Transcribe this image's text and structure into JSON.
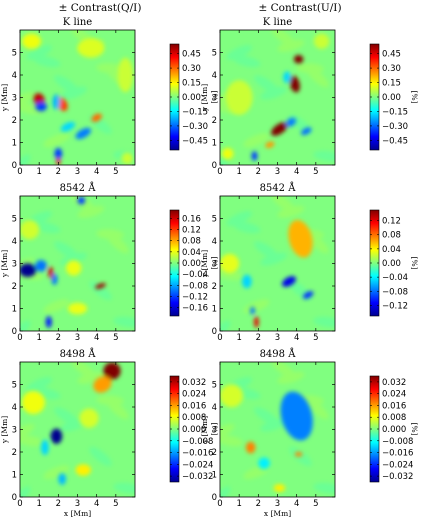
{
  "figure": {
    "column_titles": [
      "± Contrast(Q/I)",
      "± Contrast(U/I)"
    ],
    "colorbar_unit": "[%]",
    "x_axis_label": "x [Mm]",
    "y_axis_label": "y [Mm]",
    "colormap": [
      "#00008f",
      "#0000ff",
      "#0080ff",
      "#00ffff",
      "#80ff80",
      "#ffff00",
      "#ff8000",
      "#ff0000",
      "#800000"
    ],
    "background_color": "#5fdc9c"
  },
  "chart_data": [
    {
      "type": "heatmap",
      "title": "K line",
      "row": 0,
      "col": 0,
      "xlim": [
        0,
        6
      ],
      "ylim": [
        0,
        6
      ],
      "x_ticks": [
        0,
        1,
        2,
        3,
        4,
        5
      ],
      "y_ticks": [
        0,
        1,
        2,
        3,
        4,
        5
      ],
      "clim": [
        -0.55,
        0.55
      ],
      "colorbar_ticks": [
        0.45,
        0.3,
        0.15,
        0.0,
        -0.15,
        -0.3,
        -0.45
      ],
      "colorbar_tick_labels": [
        "0.45",
        "0.30",
        "0.15",
        "0.00",
        "−0.15",
        "−0.30",
        "−0.45"
      ],
      "features": [
        {
          "x": 1.0,
          "y": 2.9,
          "value": 0.48,
          "sx": 0.28,
          "sy": 0.35,
          "rot": -20
        },
        {
          "x": 1.1,
          "y": 2.6,
          "value": -0.35,
          "sx": 0.3,
          "sy": 0.25,
          "rot": 0
        },
        {
          "x": 2.2,
          "y": 2.7,
          "value": 0.35,
          "sx": 0.25,
          "sy": 0.38,
          "rot": -30
        },
        {
          "x": 1.9,
          "y": 2.8,
          "value": -0.22,
          "sx": 0.2,
          "sy": 0.4,
          "rot": 0
        },
        {
          "x": 2.5,
          "y": 1.7,
          "value": -0.18,
          "sx": 0.4,
          "sy": 0.2,
          "rot": -25
        },
        {
          "x": 3.3,
          "y": 1.4,
          "value": -0.28,
          "sx": 0.45,
          "sy": 0.22,
          "rot": -30
        },
        {
          "x": 4.0,
          "y": 2.1,
          "value": 0.3,
          "sx": 0.3,
          "sy": 0.18,
          "rot": -30
        },
        {
          "x": 2.0,
          "y": 0.5,
          "value": -0.35,
          "sx": 0.2,
          "sy": 0.3,
          "rot": 0
        },
        {
          "x": 2.0,
          "y": 0.15,
          "value": 0.42,
          "sx": 0.12,
          "sy": 0.15,
          "rot": 0
        },
        {
          "x": 0.6,
          "y": 5.5,
          "value": 0.12,
          "sx": 0.5,
          "sy": 0.4,
          "rot": 0
        },
        {
          "x": 3.7,
          "y": 5.2,
          "value": 0.1,
          "sx": 0.7,
          "sy": 0.5,
          "rot": 0
        },
        {
          "x": 5.5,
          "y": 4.0,
          "value": 0.08,
          "sx": 0.4,
          "sy": 0.9,
          "rot": 0
        },
        {
          "x": 5.6,
          "y": 0.3,
          "value": 0.08,
          "sx": 0.3,
          "sy": 0.3,
          "rot": 0
        }
      ]
    },
    {
      "type": "heatmap",
      "title": "K line",
      "row": 0,
      "col": 1,
      "xlim": [
        0,
        6
      ],
      "ylim": [
        0,
        6
      ],
      "x_ticks": [
        0,
        1,
        2,
        3,
        4,
        5
      ],
      "y_ticks": [
        0,
        1,
        2,
        3,
        4,
        5
      ],
      "clim": [
        -0.55,
        0.55
      ],
      "colorbar_ticks": [
        0.45,
        0.3,
        0.15,
        0.0,
        -0.15,
        -0.3,
        -0.45
      ],
      "colorbar_tick_labels": [
        "0.45",
        "0.30",
        "0.15",
        "0.00",
        "−0.15",
        "−0.30",
        "−0.45"
      ],
      "features": [
        {
          "x": 4.1,
          "y": 4.7,
          "value": 0.55,
          "sx": 0.25,
          "sy": 0.22,
          "rot": 0
        },
        {
          "x": 3.9,
          "y": 3.6,
          "value": 0.58,
          "sx": 0.25,
          "sy": 0.45,
          "rot": -15
        },
        {
          "x": 3.5,
          "y": 3.9,
          "value": -0.18,
          "sx": 0.2,
          "sy": 0.3,
          "rot": 0
        },
        {
          "x": 3.1,
          "y": 1.6,
          "value": 0.58,
          "sx": 0.5,
          "sy": 0.25,
          "rot": -35
        },
        {
          "x": 3.7,
          "y": 1.9,
          "value": -0.28,
          "sx": 0.3,
          "sy": 0.2,
          "rot": -35
        },
        {
          "x": 4.5,
          "y": 1.5,
          "value": -0.3,
          "sx": 0.3,
          "sy": 0.15,
          "rot": -30
        },
        {
          "x": 2.6,
          "y": 0.9,
          "value": 0.25,
          "sx": 0.25,
          "sy": 0.15,
          "rot": -20
        },
        {
          "x": 1.8,
          "y": 0.4,
          "value": -0.35,
          "sx": 0.15,
          "sy": 0.25,
          "rot": 0
        },
        {
          "x": 0.4,
          "y": 0.5,
          "value": 0.12,
          "sx": 0.3,
          "sy": 0.3,
          "rot": 0
        },
        {
          "x": 1.0,
          "y": 3.0,
          "value": 0.08,
          "sx": 0.7,
          "sy": 0.9,
          "rot": 0
        },
        {
          "x": 5.3,
          "y": 5.5,
          "value": 0.08,
          "sx": 0.4,
          "sy": 0.4,
          "rot": 0
        }
      ]
    },
    {
      "type": "heatmap",
      "title": "8542 Å",
      "row": 1,
      "col": 0,
      "xlim": [
        0,
        6
      ],
      "ylim": [
        0,
        6
      ],
      "x_ticks": [
        0,
        1,
        2,
        3,
        4,
        5
      ],
      "y_ticks": [
        0,
        1,
        2,
        3,
        4,
        5
      ],
      "clim": [
        -0.19,
        0.19
      ],
      "colorbar_ticks": [
        0.16,
        0.12,
        0.08,
        0.04,
        0.0,
        -0.04,
        -0.08,
        -0.12,
        -0.16
      ],
      "colorbar_tick_labels": [
        "0.16",
        "0.12",
        "0.08",
        "0.04",
        "0.00",
        "−0.04",
        "−0.08",
        "−0.12",
        "−0.16"
      ],
      "features": [
        {
          "x": 0.4,
          "y": 2.7,
          "value": -0.19,
          "sx": 0.45,
          "sy": 0.35,
          "rot": 0
        },
        {
          "x": 1.1,
          "y": 2.9,
          "value": -0.1,
          "sx": 0.3,
          "sy": 0.3,
          "rot": 0
        },
        {
          "x": 1.6,
          "y": 2.6,
          "value": 0.16,
          "sx": 0.13,
          "sy": 0.3,
          "rot": 0
        },
        {
          "x": 1.8,
          "y": 2.3,
          "value": -0.1,
          "sx": 0.15,
          "sy": 0.3,
          "rot": 0
        },
        {
          "x": 4.2,
          "y": 2.0,
          "value": 0.18,
          "sx": 0.3,
          "sy": 0.12,
          "rot": -20
        },
        {
          "x": 1.5,
          "y": 0.4,
          "value": -0.14,
          "sx": 0.15,
          "sy": 0.3,
          "rot": 0
        },
        {
          "x": 3.2,
          "y": 5.8,
          "value": -0.12,
          "sx": 0.2,
          "sy": 0.2,
          "rot": 0
        },
        {
          "x": 2.8,
          "y": 2.8,
          "value": 0.04,
          "sx": 0.4,
          "sy": 0.4,
          "rot": 0
        },
        {
          "x": 3.0,
          "y": 1.0,
          "value": 0.04,
          "sx": 0.5,
          "sy": 0.3,
          "rot": 0
        },
        {
          "x": 0.5,
          "y": 4.5,
          "value": 0.03,
          "sx": 0.5,
          "sy": 0.5,
          "rot": 0
        }
      ]
    },
    {
      "type": "heatmap",
      "title": "8542 Å",
      "row": 1,
      "col": 1,
      "xlim": [
        0,
        6
      ],
      "ylim": [
        0,
        6
      ],
      "x_ticks": [
        0,
        1,
        2,
        3,
        4,
        5
      ],
      "y_ticks": [
        0,
        1,
        2,
        3,
        4,
        5
      ],
      "clim": [
        -0.15,
        0.15
      ],
      "colorbar_ticks": [
        0.12,
        0.08,
        0.04,
        0.0,
        -0.04,
        -0.08,
        -0.12
      ],
      "colorbar_tick_labels": [
        "0.12",
        "0.08",
        "0.04",
        "0.00",
        "−0.04",
        "−0.08",
        "−0.12"
      ],
      "features": [
        {
          "x": 4.3,
          "y": 3.9,
          "value": 0.12,
          "sx": 0.38,
          "sy": 0.75,
          "rot": -15
        },
        {
          "x": 4.2,
          "y": 4.1,
          "value": 0.06,
          "sx": 0.6,
          "sy": 1.0,
          "rot": -15
        },
        {
          "x": 3.6,
          "y": 2.2,
          "value": -0.12,
          "sx": 0.4,
          "sy": 0.22,
          "rot": -30
        },
        {
          "x": 4.6,
          "y": 1.6,
          "value": -0.1,
          "sx": 0.3,
          "sy": 0.15,
          "rot": -30
        },
        {
          "x": 1.9,
          "y": 0.4,
          "value": 0.12,
          "sx": 0.12,
          "sy": 0.3,
          "rot": 0
        },
        {
          "x": 1.7,
          "y": 0.9,
          "value": -0.08,
          "sx": 0.12,
          "sy": 0.2,
          "rot": 0
        },
        {
          "x": 1.4,
          "y": 2.2,
          "value": -0.05,
          "sx": 0.25,
          "sy": 0.35,
          "rot": 0
        },
        {
          "x": 0.5,
          "y": 3.0,
          "value": 0.03,
          "sx": 0.5,
          "sy": 0.5,
          "rot": 0
        }
      ]
    },
    {
      "type": "heatmap",
      "title": "8498 Å",
      "row": 2,
      "col": 0,
      "xlim": [
        0,
        6
      ],
      "ylim": [
        0,
        6
      ],
      "x_ticks": [
        0,
        1,
        2,
        3,
        4,
        5
      ],
      "y_ticks": [
        0,
        1,
        2,
        3,
        4,
        5
      ],
      "clim": [
        -0.036,
        0.036
      ],
      "colorbar_ticks": [
        0.032,
        0.024,
        0.016,
        0.008,
        0.0,
        -0.008,
        -0.016,
        -0.024,
        -0.032
      ],
      "colorbar_tick_labels": [
        "0.032",
        "0.024",
        "0.016",
        "0.008",
        "0.000",
        "−0.008",
        "−0.016",
        "−0.024",
        "−0.032"
      ],
      "features": [
        {
          "x": 4.8,
          "y": 5.6,
          "value": 0.036,
          "sx": 0.45,
          "sy": 0.45,
          "rot": -30
        },
        {
          "x": 4.3,
          "y": 5.0,
          "value": 0.016,
          "sx": 0.5,
          "sy": 0.4,
          "rot": -30
        },
        {
          "x": 1.9,
          "y": 2.7,
          "value": -0.036,
          "sx": 0.3,
          "sy": 0.4,
          "rot": 0
        },
        {
          "x": 1.3,
          "y": 2.2,
          "value": -0.012,
          "sx": 0.2,
          "sy": 0.4,
          "rot": 0
        },
        {
          "x": 2.2,
          "y": 0.8,
          "value": -0.014,
          "sx": 0.2,
          "sy": 0.3,
          "rot": 0
        },
        {
          "x": 3.3,
          "y": 1.2,
          "value": 0.01,
          "sx": 0.4,
          "sy": 0.3,
          "rot": 0
        },
        {
          "x": 0.7,
          "y": 4.2,
          "value": 0.008,
          "sx": 0.6,
          "sy": 0.6,
          "rot": 0
        },
        {
          "x": 3.6,
          "y": 3.5,
          "value": 0.006,
          "sx": 0.5,
          "sy": 0.5,
          "rot": 0
        }
      ]
    },
    {
      "type": "heatmap",
      "title": "8498 Å",
      "row": 2,
      "col": 1,
      "xlim": [
        0,
        6
      ],
      "ylim": [
        0,
        6
      ],
      "x_ticks": [
        0,
        1,
        2,
        3,
        4,
        5
      ],
      "y_ticks": [
        0,
        1,
        2,
        3,
        4,
        5
      ],
      "clim": [
        -0.036,
        0.036
      ],
      "colorbar_ticks": [
        0.032,
        0.024,
        0.016,
        0.008,
        0.0,
        -0.008,
        -0.016,
        -0.024,
        -0.032
      ],
      "colorbar_tick_labels": [
        "0.032",
        "0.024",
        "0.016",
        "0.008",
        "0.000",
        "−0.008",
        "−0.016",
        "−0.024",
        "−0.032"
      ],
      "features": [
        {
          "x": 4.2,
          "y": 3.8,
          "value": -0.036,
          "sx": 0.5,
          "sy": 0.9,
          "rot": -15
        },
        {
          "x": 4.0,
          "y": 3.6,
          "value": -0.018,
          "sx": 0.8,
          "sy": 1.3,
          "rot": -15
        },
        {
          "x": 4.1,
          "y": 1.9,
          "value": 0.018,
          "sx": 0.2,
          "sy": 0.12,
          "rot": 0
        },
        {
          "x": 1.6,
          "y": 2.2,
          "value": 0.018,
          "sx": 0.25,
          "sy": 0.3,
          "rot": 0
        },
        {
          "x": 2.3,
          "y": 1.5,
          "value": -0.01,
          "sx": 0.3,
          "sy": 0.3,
          "rot": 0
        },
        {
          "x": 3.1,
          "y": 0.4,
          "value": 0.01,
          "sx": 0.3,
          "sy": 0.2,
          "rot": 0
        },
        {
          "x": 0.6,
          "y": 4.5,
          "value": 0.006,
          "sx": 0.6,
          "sy": 0.6,
          "rot": 0
        }
      ]
    }
  ]
}
